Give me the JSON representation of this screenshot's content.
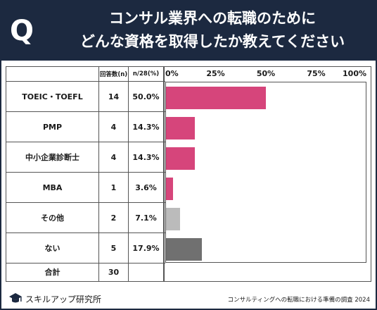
{
  "header": {
    "q_mark": "Q",
    "title_line1": "コンサル業界への転職のために",
    "title_line2": "どんな資格を取得したか教えてください",
    "background": "#1c2940"
  },
  "table": {
    "col_n": "回答数(n)",
    "col_pct": "n/28(%)",
    "total_label": "合計",
    "total_value": "30"
  },
  "chart_data": {
    "type": "bar",
    "orientation": "horizontal",
    "categories": [
      "TOEIC・TOEFL",
      "PMP",
      "中小企業診断士",
      "MBA",
      "その他",
      "ない"
    ],
    "counts": [
      14,
      4,
      4,
      1,
      2,
      5
    ],
    "values": [
      50.0,
      14.3,
      14.3,
      3.6,
      7.1,
      17.9
    ],
    "value_labels": [
      "50.0%",
      "14.3%",
      "14.3%",
      "3.6%",
      "7.1%",
      "17.9%"
    ],
    "colors": [
      "#d6457b",
      "#d6457b",
      "#d6457b",
      "#d6457b",
      "#bbbbbb",
      "#707070"
    ],
    "xlim": [
      0,
      100
    ],
    "x_ticks": [
      "0%",
      "25%",
      "50%",
      "75%",
      "100%"
    ],
    "grid": false
  },
  "footer": {
    "brand": "スキルアップ研究所",
    "source": "コンサルティングへの転職における準備の調査 2024"
  }
}
